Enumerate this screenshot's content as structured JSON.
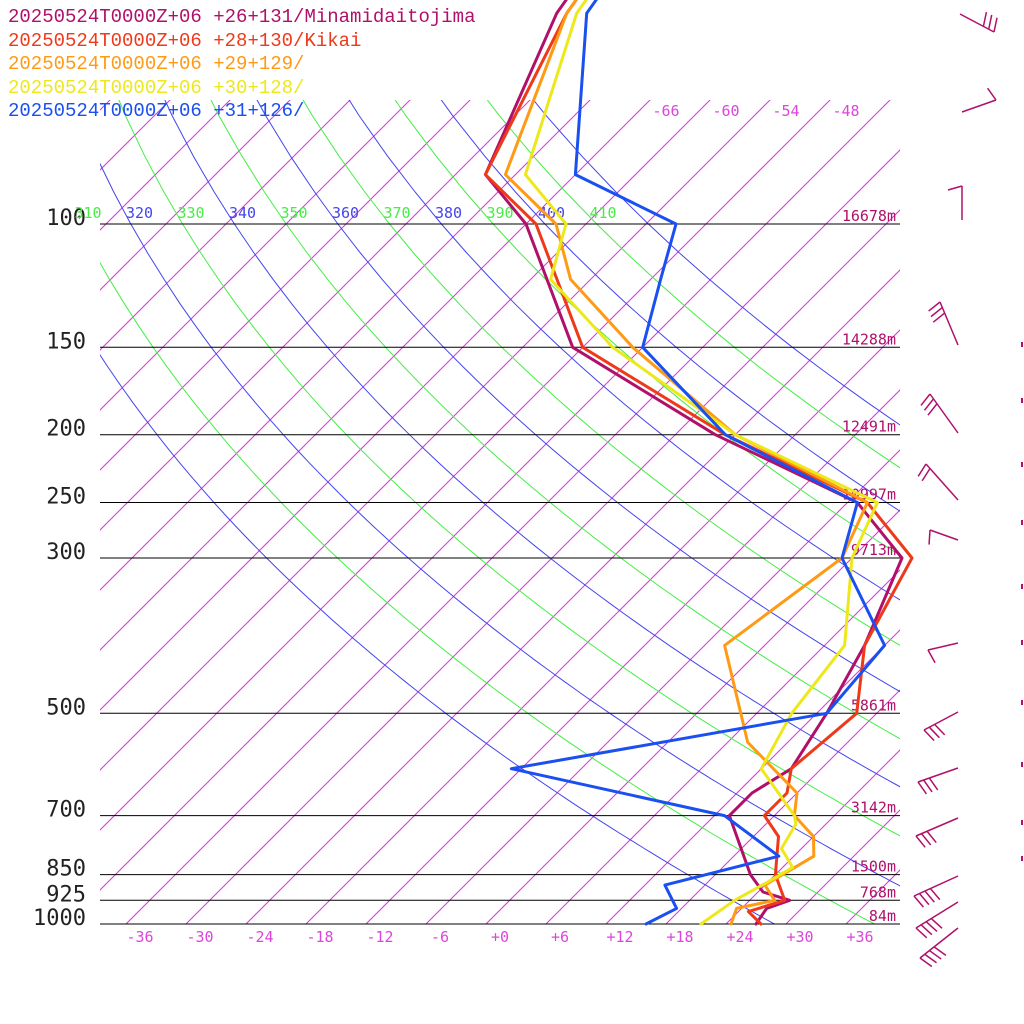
{
  "legend": [
    {
      "text": "20250524T0000Z+06 +26+131/Minamidaitojima",
      "color": "#b0106a"
    },
    {
      "text": "20250524T0000Z+06 +28+130/Kikai",
      "color": "#ee3a1a"
    },
    {
      "text": "20250524T0000Z+06 +29+129/",
      "color": "#ff9a14"
    },
    {
      "text": "20250524T0000Z+06 +30+128/",
      "color": "#eee81a"
    },
    {
      "text": "20250524T0000Z+06 +31+126/",
      "color": "#1a4ff0"
    }
  ],
  "chart_data": {
    "type": "line",
    "chart_kind": "skew-T log-P sounding",
    "pressure_levels": [
      100,
      150,
      200,
      250,
      300,
      500,
      700,
      850,
      925,
      1000
    ],
    "pressure_labels": [
      "100",
      "150",
      "200",
      "250",
      "300",
      "500",
      "700",
      "850",
      "925",
      "1000"
    ],
    "height_labels": [
      "16678m",
      "14288m",
      "12491m",
      "10997m",
      "9713m",
      "5861m",
      "3142m",
      "1500m",
      "768m",
      "84m"
    ],
    "temperature_ticks": [
      -36,
      -30,
      -24,
      -18,
      -12,
      -6,
      0,
      6,
      12,
      18,
      24,
      30,
      36
    ],
    "temperature_tick_labels": [
      "-36",
      "-30",
      "-24",
      "-18",
      "-12",
      "-6",
      "+0",
      "+6",
      "+12",
      "+18",
      "+24",
      "+30",
      "+36"
    ],
    "upper_temperature_labels": [
      "-66",
      "-60",
      "-54",
      "-48"
    ],
    "theta_labels": [
      "310",
      "320",
      "330",
      "340",
      "350",
      "360",
      "370",
      "380",
      "390",
      "400",
      "410"
    ],
    "temperature_range": [
      -40,
      40
    ],
    "pressure_range": [
      100,
      1000
    ],
    "series": [
      {
        "name": "20250524T0000Z+06 +26+131/Minamidaitojima",
        "color": "#b0106a",
        "points": [
          [
            25,
            1000
          ],
          [
            24.5,
            950
          ],
          [
            26,
            925
          ],
          [
            22.5,
            900
          ],
          [
            19.5,
            850
          ],
          [
            11.5,
            700
          ],
          [
            11.5,
            650
          ],
          [
            13,
            600
          ],
          [
            11,
            500
          ],
          [
            8,
            400
          ],
          [
            3,
            300
          ],
          [
            -7,
            250
          ],
          [
            -28,
            200
          ],
          [
            -51,
            150
          ],
          [
            -68,
            100
          ],
          [
            -77,
            85
          ],
          [
            -86,
            50
          ],
          [
            -88,
            40
          ]
        ]
      },
      {
        "name": "20250524T0000Z+06 +28+130/Kikai",
        "color": "#ee3a1a",
        "points": [
          [
            25.5,
            1000
          ],
          [
            23,
            960
          ],
          [
            25.5,
            925
          ],
          [
            22,
            850
          ],
          [
            18.5,
            750
          ],
          [
            15,
            700
          ],
          [
            15,
            650
          ],
          [
            13,
            600
          ],
          [
            14,
            500
          ],
          [
            8,
            400
          ],
          [
            4,
            300
          ],
          [
            -6,
            250
          ],
          [
            -27,
            200
          ],
          [
            -50,
            150
          ],
          [
            -67,
            100
          ],
          [
            -77,
            85
          ],
          [
            -85,
            50
          ],
          [
            -87,
            40
          ]
        ]
      },
      {
        "name": "20250524T0000Z+06 +29+129/",
        "color": "#ff9a14",
        "points": [
          [
            22.5,
            1000
          ],
          [
            21.5,
            950
          ],
          [
            24.5,
            925
          ],
          [
            22,
            880
          ],
          [
            24,
            800
          ],
          [
            22,
            750
          ],
          [
            18,
            700
          ],
          [
            16,
            650
          ],
          [
            6,
            550
          ],
          [
            -6,
            400
          ],
          [
            -3,
            300
          ],
          [
            -6,
            250
          ],
          [
            -26,
            200
          ],
          [
            -45,
            150
          ],
          [
            -58,
            120
          ],
          [
            -65,
            100
          ],
          [
            -75,
            85
          ],
          [
            -85,
            50
          ],
          [
            -87,
            40
          ]
        ]
      },
      {
        "name": "20250524T0000Z+06 +30+128/",
        "color": "#eee81a",
        "points": [
          [
            19.5,
            1000
          ],
          [
            20.5,
            925
          ],
          [
            22,
            870
          ],
          [
            23,
            830
          ],
          [
            20,
            780
          ],
          [
            19,
            720
          ],
          [
            18,
            700
          ],
          [
            10,
            600
          ],
          [
            7.5,
            500
          ],
          [
            6,
            400
          ],
          [
            -2,
            300
          ],
          [
            -5,
            250
          ],
          [
            -26,
            200
          ],
          [
            -47,
            150
          ],
          [
            -60,
            120
          ],
          [
            -64,
            100
          ],
          [
            -73,
            85
          ],
          [
            -84,
            50
          ],
          [
            -86,
            40
          ]
        ]
      },
      {
        "name": "20250524T0000Z+06 +31+126/",
        "color": "#1a4ff0",
        "points": [
          [
            14,
            1000
          ],
          [
            15.5,
            950
          ],
          [
            12,
            880
          ],
          [
            20.5,
            800
          ],
          [
            11,
            700
          ],
          [
            -15,
            600
          ],
          [
            11,
            500
          ],
          [
            10,
            400
          ],
          [
            -3,
            300
          ],
          [
            -7,
            250
          ],
          [
            -27,
            200
          ],
          [
            -44,
            150
          ],
          [
            -49,
            120
          ],
          [
            -53,
            100
          ],
          [
            -68,
            85
          ],
          [
            -83,
            50
          ],
          [
            -85,
            40
          ]
        ]
      }
    ],
    "title": "",
    "xlabel": "",
    "ylabel": "",
    "grid": true,
    "legend_placement": "top-left"
  }
}
